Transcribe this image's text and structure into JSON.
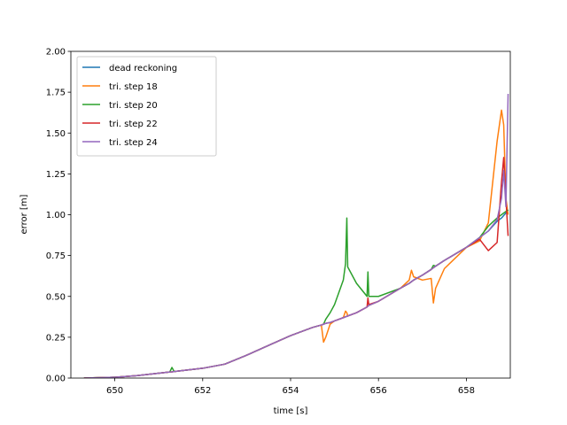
{
  "chart_data": {
    "type": "line",
    "x_label": "time [s]",
    "y_label": "error [m]",
    "x": [
      649.3,
      650,
      650.5,
      651,
      651.25,
      651.3,
      651.35,
      651.5,
      652,
      652.5,
      653,
      653.5,
      654,
      654.5,
      654.7,
      654.75,
      654.8,
      654.9,
      655,
      655.2,
      655.25,
      655.28,
      655.3,
      655.5,
      655.74,
      655.76,
      655.78,
      656,
      656.5,
      656.7,
      656.75,
      656.8,
      657,
      657.2,
      657.25,
      657.3,
      657.5,
      658,
      658.3,
      658.5,
      658.7,
      658.8,
      658.85,
      658.9,
      658.95
    ],
    "series": [
      {
        "name": "dead reckoning",
        "color": "#1f77b4",
        "values": [
          0,
          0.005,
          0.015,
          0.03,
          0.037,
          0.038,
          0.04,
          0.045,
          0.06,
          0.085,
          0.14,
          0.2,
          0.26,
          0.31,
          0.325,
          0.33,
          0.335,
          0.34,
          0.35,
          0.37,
          0.375,
          0.378,
          0.38,
          0.4,
          0.435,
          0.44,
          0.445,
          0.47,
          0.55,
          0.58,
          0.59,
          0.6,
          0.63,
          0.665,
          0.675,
          0.685,
          0.72,
          0.8,
          0.86,
          0.9,
          0.96,
          0.98,
          0.995,
          1.01,
          1.03
        ]
      },
      {
        "name": "tri. step 18",
        "color": "#ff7f0e",
        "values": [
          0,
          0.005,
          0.015,
          0.03,
          0.037,
          0.038,
          0.04,
          0.045,
          0.06,
          0.085,
          0.14,
          0.2,
          0.26,
          0.31,
          0.325,
          0.22,
          0.25,
          0.33,
          0.35,
          0.37,
          0.41,
          0.4,
          0.38,
          0.4,
          0.435,
          0.44,
          0.445,
          0.47,
          0.55,
          0.6,
          0.66,
          0.62,
          0.6,
          0.61,
          0.46,
          0.55,
          0.67,
          0.8,
          0.84,
          0.95,
          1.45,
          1.64,
          1.55,
          1.1,
          1.0
        ]
      },
      {
        "name": "tri. step 20",
        "color": "#2ca02c",
        "values": [
          0,
          0.005,
          0.015,
          0.03,
          0.037,
          0.065,
          0.04,
          0.045,
          0.06,
          0.085,
          0.14,
          0.2,
          0.26,
          0.31,
          0.325,
          0.33,
          0.36,
          0.4,
          0.45,
          0.6,
          0.7,
          0.98,
          0.68,
          0.58,
          0.5,
          0.65,
          0.5,
          0.5,
          0.55,
          0.58,
          0.59,
          0.6,
          0.63,
          0.665,
          0.69,
          0.685,
          0.72,
          0.8,
          0.86,
          0.93,
          0.98,
          1.0,
          1.01,
          1.02,
          1.03
        ]
      },
      {
        "name": "tri. step 22",
        "color": "#d62728",
        "values": [
          0,
          0.005,
          0.015,
          0.03,
          0.037,
          0.038,
          0.04,
          0.045,
          0.06,
          0.085,
          0.14,
          0.2,
          0.26,
          0.31,
          0.325,
          0.33,
          0.335,
          0.34,
          0.35,
          0.37,
          0.375,
          0.378,
          0.38,
          0.4,
          0.435,
          0.49,
          0.45,
          0.47,
          0.55,
          0.58,
          0.59,
          0.6,
          0.63,
          0.665,
          0.675,
          0.685,
          0.72,
          0.8,
          0.85,
          0.78,
          0.83,
          1.2,
          1.35,
          1.1,
          0.87
        ]
      },
      {
        "name": "tri. step 24",
        "color": "#9467bd",
        "values": [
          0,
          0.005,
          0.015,
          0.03,
          0.037,
          0.038,
          0.04,
          0.045,
          0.06,
          0.085,
          0.14,
          0.2,
          0.26,
          0.31,
          0.325,
          0.33,
          0.335,
          0.34,
          0.35,
          0.37,
          0.375,
          0.378,
          0.38,
          0.4,
          0.435,
          0.44,
          0.445,
          0.47,
          0.55,
          0.58,
          0.59,
          0.6,
          0.63,
          0.665,
          0.675,
          0.685,
          0.72,
          0.8,
          0.86,
          0.9,
          0.97,
          1.1,
          1.27,
          1.05,
          1.74
        ]
      }
    ],
    "xlim": [
      649,
      659
    ],
    "xticks": [
      650,
      652,
      654,
      656,
      658
    ],
    "ylim": [
      0,
      2
    ],
    "yticks": [
      {
        "value": 0,
        "label": "0.00"
      },
      {
        "value": 0.25,
        "label": "0.25"
      },
      {
        "value": 0.5,
        "label": "0.50"
      },
      {
        "value": 0.75,
        "label": "0.75"
      },
      {
        "value": 1,
        "label": "1.00"
      },
      {
        "value": 1.25,
        "label": "1.25"
      },
      {
        "value": 1.5,
        "label": "1.50"
      },
      {
        "value": 1.75,
        "label": "1.75"
      },
      {
        "value": 2,
        "label": "2.00"
      }
    ],
    "legend": "upper left"
  }
}
